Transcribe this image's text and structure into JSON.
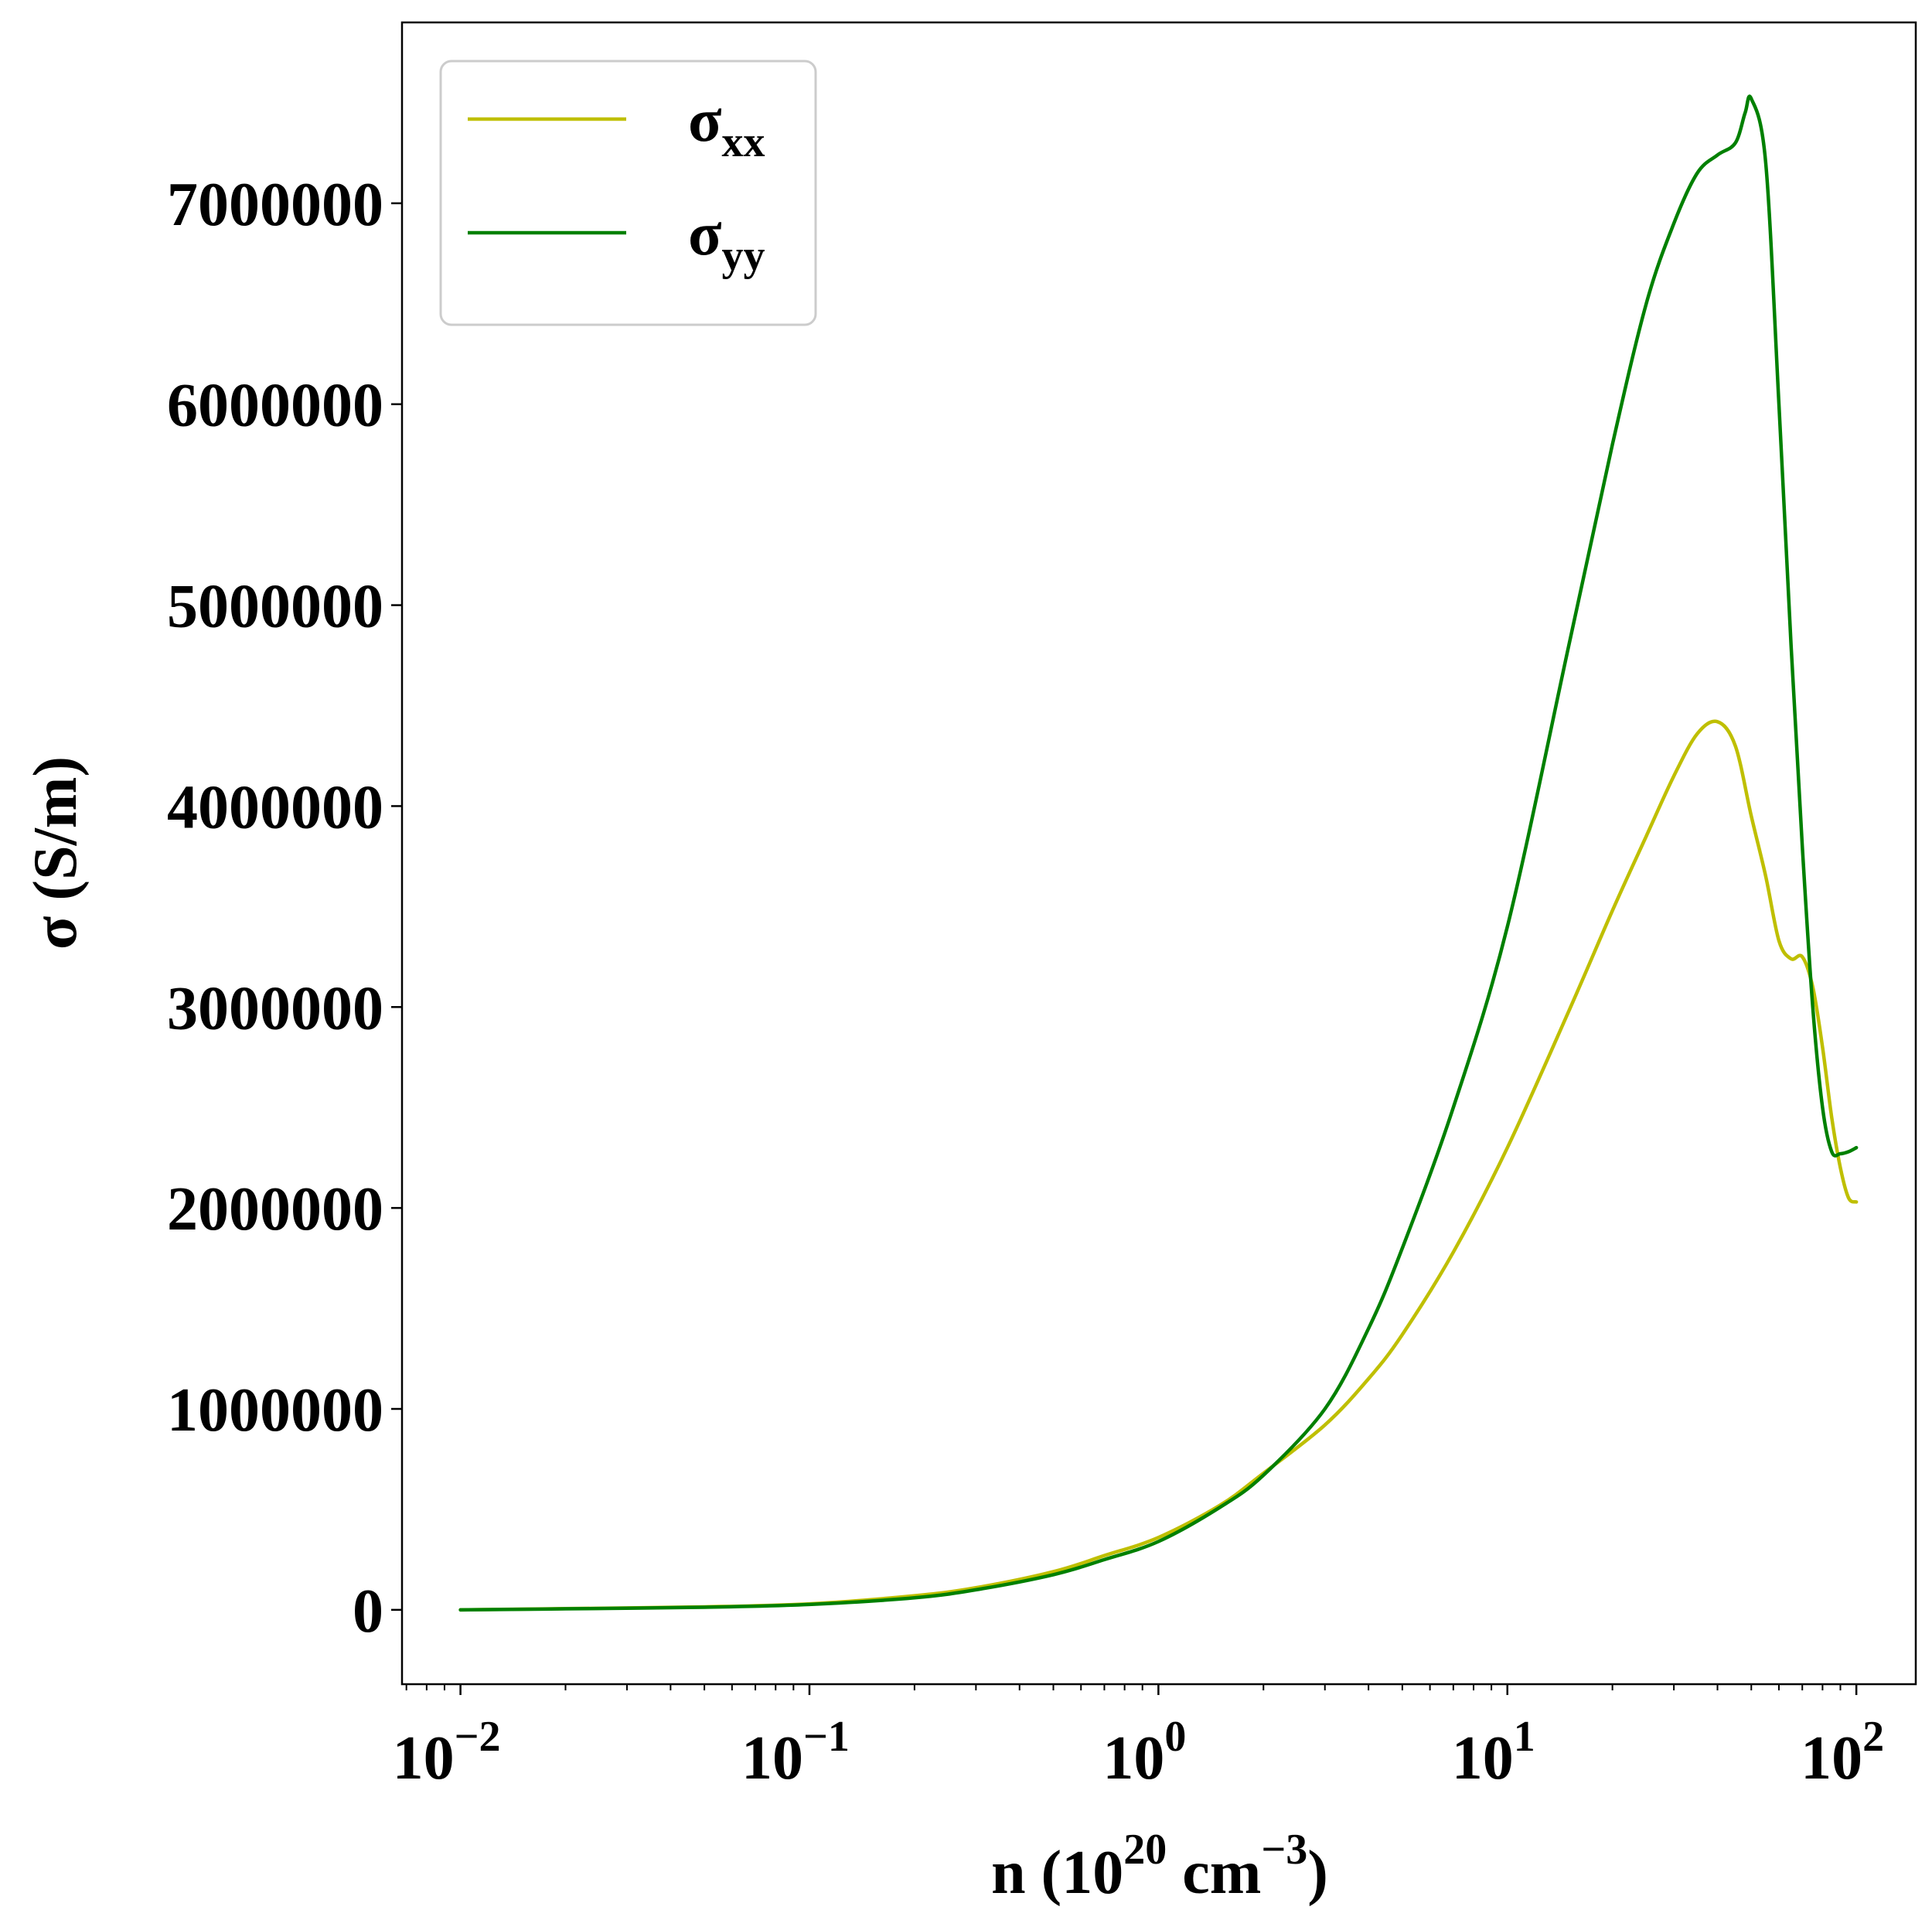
{
  "chart_data": {
    "type": "line",
    "xscale": "log",
    "xlabel": "n (10^20 cm^-3)",
    "xlabel_parts": {
      "pre": "n (10",
      "exp1": "20",
      "mid": " cm",
      "exp2": "−3",
      "post": ")"
    },
    "ylabel": "σ (S/m)",
    "xlim": [
      0.0068,
      148
    ],
    "ylim": [
      -370000,
      7900000
    ],
    "x_ticks": [
      {
        "value": 0.01,
        "base": "10",
        "exp": "−2"
      },
      {
        "value": 0.1,
        "base": "10",
        "exp": "−1"
      },
      {
        "value": 1,
        "base": "10",
        "exp": "0"
      },
      {
        "value": 10,
        "base": "10",
        "exp": "1"
      },
      {
        "value": 100,
        "base": "10",
        "exp": "2"
      }
    ],
    "y_ticks": [
      0,
      1000000,
      2000000,
      3000000,
      4000000,
      5000000,
      6000000,
      7000000
    ],
    "y_tick_labels": [
      "0",
      "1000000",
      "2000000",
      "3000000",
      "4000000",
      "5000000",
      "6000000",
      "7000000"
    ],
    "legend_position": "upper-left",
    "grid": false,
    "series": [
      {
        "name": "σxx",
        "name_base": "σ",
        "name_sub": "xx",
        "color": "#bfbf00",
        "x": [
          0.01,
          0.02,
          0.05,
          0.1,
          0.2,
          0.3,
          0.5,
          0.7,
          1.0,
          1.5,
          2.0,
          3.0,
          4.0,
          5.0,
          7.0,
          10.0,
          15.0,
          20.0,
          25.0,
          30.0,
          35.0,
          40.0,
          45.0,
          50.0,
          55.0,
          60.0,
          65.0,
          70.0,
          75.0,
          80.0,
          85.0,
          90.0,
          95.0,
          100.0
        ],
        "y": [
          0,
          6000,
          15000,
          30000,
          70000,
          110000,
          190000,
          270000,
          360000,
          520000,
          680000,
          920000,
          1150000,
          1370000,
          1780000,
          2300000,
          2980000,
          3480000,
          3850000,
          4150000,
          4360000,
          4420000,
          4300000,
          3950000,
          3650000,
          3330000,
          3240000,
          3250000,
          3100000,
          2800000,
          2450000,
          2200000,
          2050000,
          2030000
        ]
      },
      {
        "name": "σyy",
        "name_base": "σ",
        "name_sub": "yy",
        "color": "#008000",
        "x": [
          0.01,
          0.02,
          0.05,
          0.1,
          0.2,
          0.3,
          0.5,
          0.7,
          1.0,
          1.5,
          2.0,
          3.0,
          4.0,
          5.0,
          7.0,
          10.0,
          15.0,
          20.0,
          25.0,
          30.0,
          35.0,
          40.0,
          45.0,
          48.0,
          50.0,
          55.0,
          60.0,
          65.0,
          70.0,
          75.0,
          80.0,
          85.0,
          90.0,
          95.0,
          100.0
        ],
        "y": [
          0,
          5000,
          13000,
          27000,
          60000,
          100000,
          175000,
          250000,
          340000,
          510000,
          670000,
          1000000,
          1400000,
          1800000,
          2500000,
          3400000,
          4800000,
          5800000,
          6500000,
          6900000,
          7150000,
          7240000,
          7300000,
          7450000,
          7520000,
          7200000,
          6000000,
          4800000,
          3800000,
          3000000,
          2500000,
          2280000,
          2270000,
          2280000,
          2300000
        ]
      }
    ]
  }
}
